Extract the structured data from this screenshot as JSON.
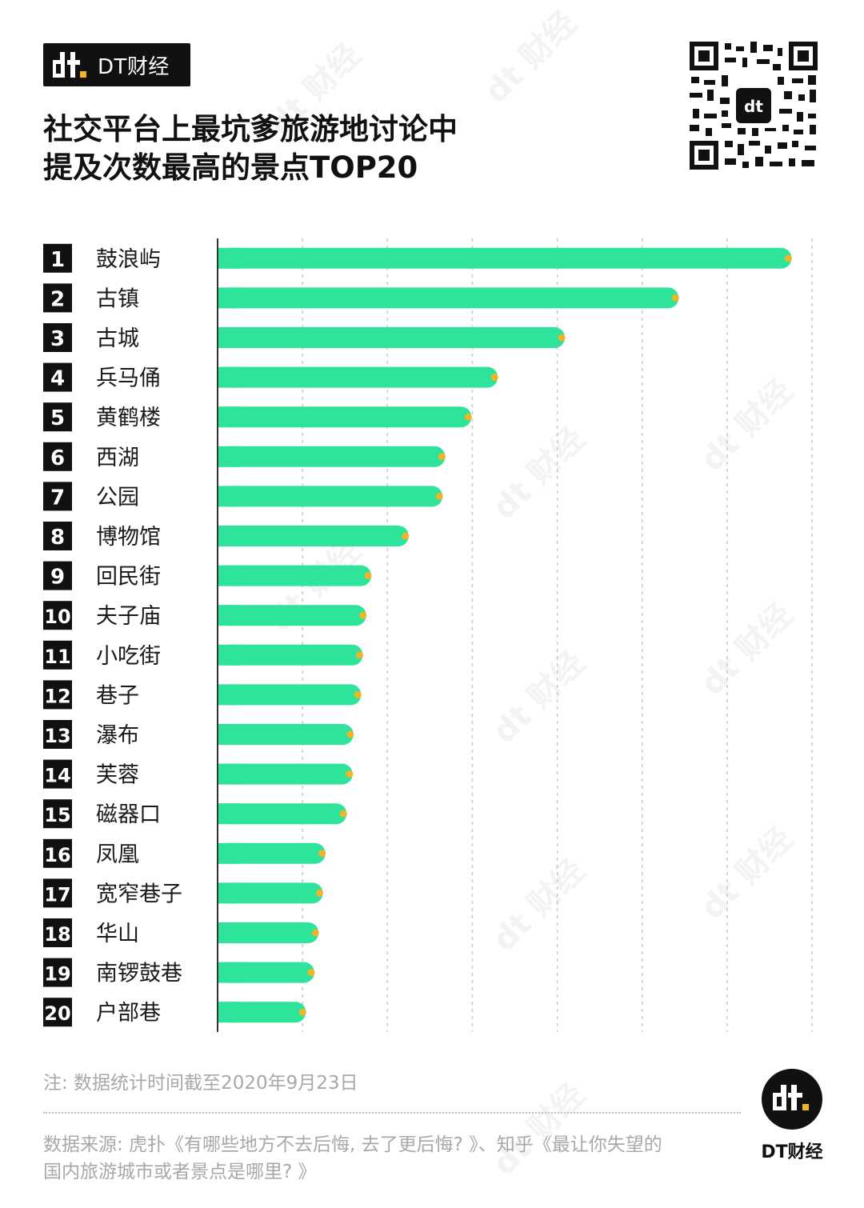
{
  "brand": {
    "name": "DT财经",
    "mark": "dt"
  },
  "title_lines": [
    "社交平台上最坑爹旅游地讨论中",
    "提及次数最高的景点TOP20"
  ],
  "colors": {
    "bar": "#2ee39a",
    "bar_end_dot": "#f0b429",
    "rank_bg": "#111111",
    "grid": "#c8c8c8"
  },
  "chart_data": {
    "type": "bar",
    "orientation": "horizontal",
    "title": "社交平台上最坑爹旅游地讨论中提及次数最高的景点TOP20",
    "ranks": [
      "1",
      "2",
      "3",
      "4",
      "5",
      "6",
      "7",
      "8",
      "9",
      "10",
      "11",
      "12",
      "13",
      "14",
      "15",
      "16",
      "17",
      "18",
      "19",
      "20"
    ],
    "categories": [
      "鼓浪屿",
      "古镇",
      "古城",
      "兵马俑",
      "黄鹤楼",
      "西湖",
      "公园",
      "博物馆",
      "回民街",
      "夫子庙",
      "小吃街",
      "巷子",
      "瀑布",
      "芙蓉",
      "磁器口",
      "凤凰",
      "宽窄巷子",
      "华山",
      "南锣鼓巷",
      "户部巷"
    ],
    "values": [
      6.75,
      5.42,
      4.08,
      3.29,
      2.98,
      2.67,
      2.64,
      2.24,
      1.8,
      1.74,
      1.7,
      1.68,
      1.59,
      1.58,
      1.51,
      1.26,
      1.23,
      1.18,
      1.13,
      1.03
    ],
    "xlim": [
      0,
      7
    ],
    "grid": true,
    "tick_labels_shown": false
  },
  "note": "注: 数据统计时间截至2020年9月23日",
  "source_lines": [
    "数据来源: 虎扑《有哪些地方不去后悔, 去了更后悔? 》、知乎《最让你失望的",
    "国内旅游城市或者景点是哪里? 》"
  ],
  "footer_logo": {
    "mark": "dt",
    "caption": "DT财经"
  },
  "watermark": "dt 财经"
}
